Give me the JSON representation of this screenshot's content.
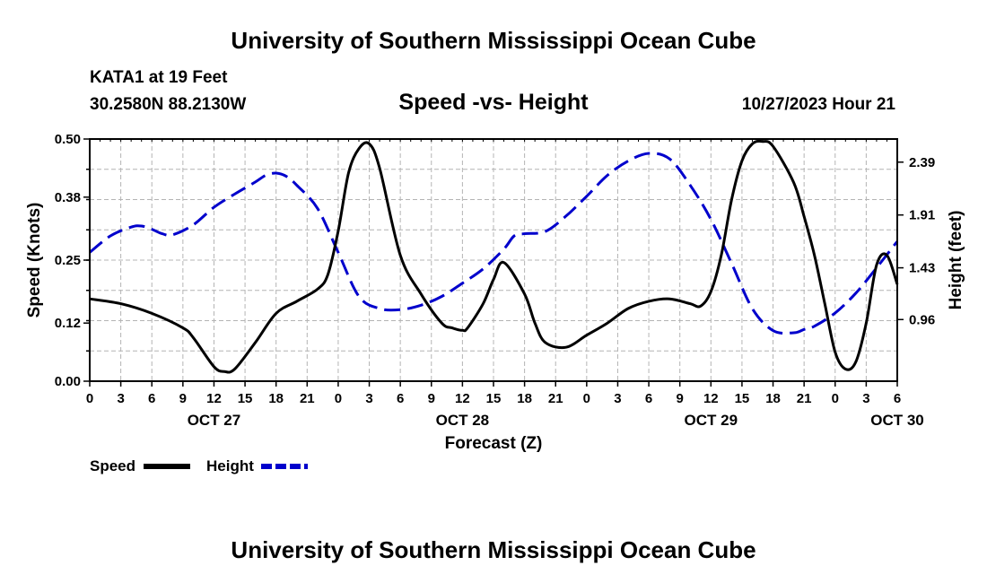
{
  "header": {
    "title": "University of Southern Mississippi Ocean Cube",
    "station": "KATA1 at 19 Feet",
    "coords": "30.2580N  88.2130W",
    "subtitle": "Speed -vs- Height",
    "datetime": "10/27/2023 Hour 21",
    "footer_title": "University of Southern Mississippi Ocean Cube"
  },
  "chart_data": {
    "type": "line",
    "title": "Speed -vs- Height",
    "xlabel": "Forecast (Z)",
    "ylabel": "Speed (Knots)",
    "y2label": "Height (feet)",
    "ylim": [
      0,
      0.5
    ],
    "y2lim": [
      0.4,
      2.6
    ],
    "xlim": [
      0,
      78
    ],
    "x_unit": "hours from OCT 27 00Z",
    "x_tick_values": [
      0,
      3,
      6,
      9,
      12,
      15,
      18,
      21,
      24,
      27,
      30,
      33,
      36,
      39,
      42,
      45,
      48,
      51,
      54,
      57,
      60,
      63,
      66,
      69,
      72,
      75,
      78
    ],
    "x_tick_labels": [
      "0",
      "3",
      "6",
      "9",
      "12",
      "15",
      "18",
      "21",
      "0",
      "3",
      "6",
      "9",
      "12",
      "15",
      "18",
      "21",
      "0",
      "3",
      "6",
      "9",
      "12",
      "15",
      "18",
      "21",
      "0",
      "3",
      "6"
    ],
    "day_labels": [
      {
        "x": 12,
        "label": "OCT 27"
      },
      {
        "x": 36,
        "label": "OCT 28"
      },
      {
        "x": 60,
        "label": "OCT 29"
      },
      {
        "x": 78,
        "label": "OCT 30"
      }
    ],
    "y_ticks": [
      0.0,
      0.12,
      0.25,
      0.38,
      0.5
    ],
    "y_tick_labels": [
      "0.00",
      "0.12",
      "0.25",
      "0.38",
      "0.50"
    ],
    "y2_ticks": [
      0.96,
      1.43,
      1.91,
      2.39
    ],
    "y2_tick_labels": [
      "0.96",
      "1.43",
      "1.91",
      "2.39"
    ],
    "grid": true,
    "legend_position": "bottom-left",
    "series": [
      {
        "name": "Speed",
        "axis": "left",
        "color": "#000000",
        "style": "solid",
        "x": [
          0,
          3,
          6,
          9,
          10,
          12,
          13,
          14,
          16,
          18,
          20,
          22,
          23,
          24,
          25,
          26,
          27,
          28,
          30,
          32,
          34,
          35,
          36,
          36.5,
          38,
          39,
          40,
          42,
          43,
          44,
          46,
          48,
          50,
          52,
          54,
          56,
          58,
          59,
          60,
          61,
          62,
          63,
          64,
          65,
          66,
          68,
          69,
          70,
          71,
          72,
          73,
          74,
          75,
          76,
          77,
          78
        ],
        "values": [
          0.17,
          0.16,
          0.14,
          0.11,
          0.09,
          0.03,
          0.02,
          0.025,
          0.08,
          0.14,
          0.165,
          0.19,
          0.22,
          0.31,
          0.43,
          0.48,
          0.49,
          0.44,
          0.26,
          0.18,
          0.12,
          0.11,
          0.105,
          0.11,
          0.16,
          0.21,
          0.245,
          0.18,
          0.12,
          0.08,
          0.07,
          0.095,
          0.12,
          0.15,
          0.165,
          0.17,
          0.16,
          0.155,
          0.185,
          0.26,
          0.375,
          0.455,
          0.49,
          0.495,
          0.485,
          0.41,
          0.34,
          0.26,
          0.16,
          0.06,
          0.025,
          0.04,
          0.12,
          0.24,
          0.26,
          0.2
        ]
      },
      {
        "name": "Height",
        "axis": "right",
        "color": "#0000cc",
        "style": "dashed",
        "x": [
          0,
          2,
          4,
          5,
          6,
          7,
          8,
          10,
          12,
          14,
          16,
          17,
          18,
          19,
          20,
          22,
          24,
          26,
          28,
          30,
          32,
          34,
          36,
          38,
          40,
          41,
          42,
          44,
          46,
          48,
          50,
          52,
          54,
          56,
          58,
          60,
          62,
          64,
          66,
          68,
          69,
          70,
          72,
          74,
          76,
          78
        ],
        "values": [
          1.57,
          1.72,
          1.8,
          1.81,
          1.78,
          1.74,
          1.73,
          1.82,
          1.98,
          2.1,
          2.21,
          2.27,
          2.29,
          2.26,
          2.18,
          1.97,
          1.57,
          1.17,
          1.06,
          1.05,
          1.09,
          1.17,
          1.29,
          1.42,
          1.6,
          1.72,
          1.74,
          1.76,
          1.9,
          2.08,
          2.27,
          2.4,
          2.47,
          2.42,
          2.18,
          1.87,
          1.47,
          1.06,
          0.86,
          0.84,
          0.87,
          0.9,
          1.02,
          1.2,
          1.43,
          1.67
        ]
      }
    ],
    "legend": [
      {
        "name": "Speed",
        "color": "#000000",
        "style": "solid"
      },
      {
        "name": "Height",
        "color": "#0000cc",
        "style": "dashed"
      }
    ]
  }
}
